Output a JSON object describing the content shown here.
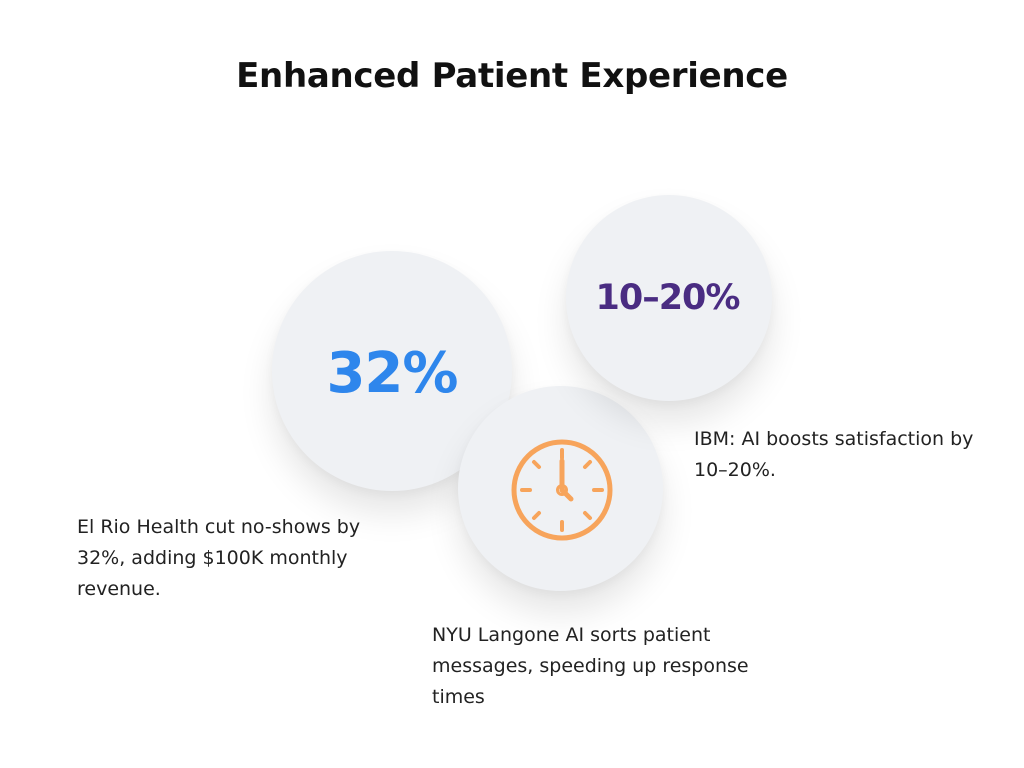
{
  "title": "Enhanced Patient Experience",
  "stats": {
    "el_rio": {
      "value": "32%",
      "caption": "El Rio Health cut no-shows by 32%, adding $100K monthly revenue."
    },
    "ibm": {
      "value": "10–20%",
      "caption": "IBM: AI boosts satisfaction by 10–20%."
    },
    "nyu": {
      "icon": "clock-icon",
      "caption": "NYU Langone AI sorts patient messages, speeding up response times"
    }
  },
  "colors": {
    "value_blue": "#2e86ec",
    "value_purple": "#4a2c82",
    "clock_orange": "#f7a45b",
    "circle_fill": "#eff1f4"
  }
}
